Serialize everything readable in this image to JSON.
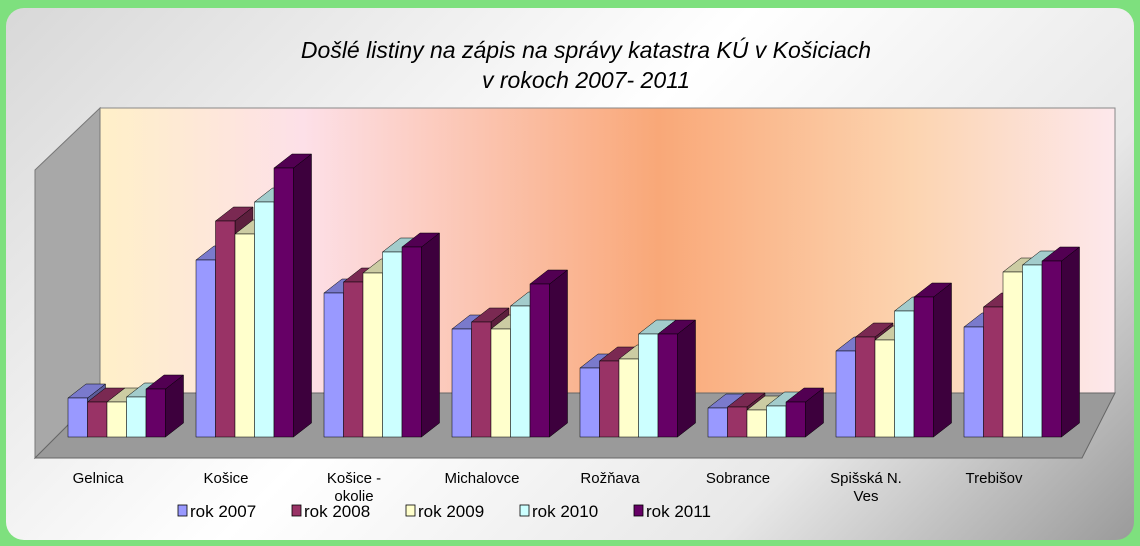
{
  "chart_data": {
    "type": "bar3d",
    "title": "Došlé listiny na zápis na správy katastra KÚ v Košiciach",
    "subtitle": "v rokoch  2007- 2011",
    "categories": [
      "Gelnica",
      "Košice",
      "Košice - okolie",
      "Michalovce",
      "Rožňava",
      "Sobrance",
      "Spišská N. Ves",
      "Trebišov"
    ],
    "ylim": [
      0,
      280
    ],
    "legend": "bottom",
    "series": [
      {
        "name": "rok 2007",
        "color": "#9999ff",
        "values": [
          39,
          177,
          144,
          108,
          69,
          29,
          86,
          110
        ]
      },
      {
        "name": "rok 2008",
        "color": "#993366",
        "values": [
          35,
          216,
          155,
          115,
          76,
          30,
          100,
          130
        ]
      },
      {
        "name": "rok 2009",
        "color": "#ffffcc",
        "values": [
          35,
          203,
          164,
          108,
          78,
          27,
          97,
          165
        ]
      },
      {
        "name": "rok 2010",
        "color": "#ccffff",
        "values": [
          40,
          235,
          185,
          131,
          103,
          31,
          126,
          172
        ]
      },
      {
        "name": "rok 2011",
        "color": "#660066",
        "values": [
          48,
          269,
          190,
          153,
          103,
          35,
          140,
          176
        ]
      }
    ]
  }
}
